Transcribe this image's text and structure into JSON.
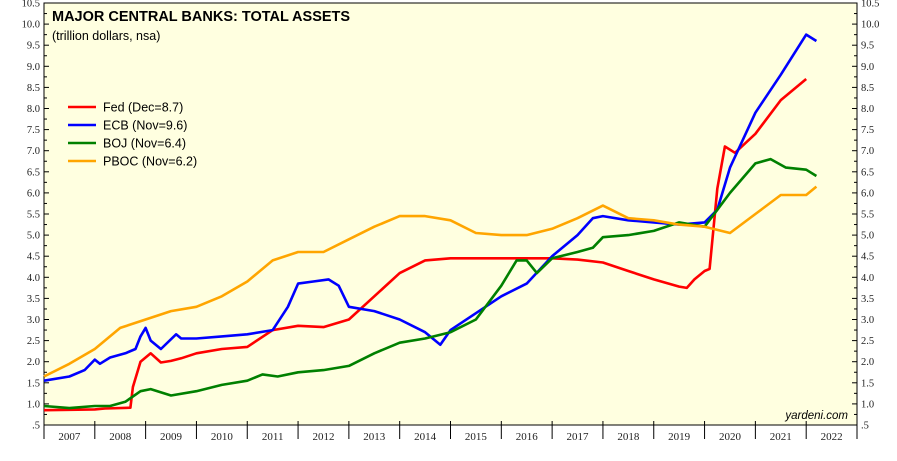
{
  "chart_data": {
    "type": "line",
    "title": "MAJOR CENTRAL BANKS: TOTAL ASSETS",
    "subtitle": "(trillion dollars, nsa)",
    "credit": "yardeni.com",
    "ylim": [
      0.5,
      10.5
    ],
    "y_ticks": [
      ".5",
      "1.0",
      "1.5",
      "2.0",
      "2.5",
      "3.0",
      "3.5",
      "4.0",
      "4.5",
      "5.0",
      "5.5",
      "6.0",
      "6.5",
      "7.0",
      "7.5",
      "8.0",
      "8.5",
      "9.0",
      "9.5",
      "10.0",
      "10.5"
    ],
    "xlim": [
      2007,
      2023
    ],
    "x_labels": [
      "2007",
      "2008",
      "2009",
      "2010",
      "2011",
      "2012",
      "2013",
      "2014",
      "2015",
      "2016",
      "2017",
      "2018",
      "2019",
      "2020",
      "2021",
      "2022"
    ],
    "background_color": "#ffffe0",
    "grid": false,
    "legend_position": "upper-left",
    "series": [
      {
        "name": "Fed (Dec=8.7)",
        "color": "#ff0000",
        "points": [
          [
            2007.0,
            0.85
          ],
          [
            2007.5,
            0.86
          ],
          [
            2008.0,
            0.87
          ],
          [
            2008.2,
            0.89
          ],
          [
            2008.7,
            0.91
          ],
          [
            2008.75,
            1.4
          ],
          [
            2008.9,
            2.0
          ],
          [
            2009.1,
            2.2
          ],
          [
            2009.3,
            1.98
          ],
          [
            2009.5,
            2.02
          ],
          [
            2009.7,
            2.08
          ],
          [
            2010.0,
            2.2
          ],
          [
            2010.5,
            2.3
          ],
          [
            2011.0,
            2.35
          ],
          [
            2011.5,
            2.75
          ],
          [
            2012.0,
            2.85
          ],
          [
            2012.5,
            2.82
          ],
          [
            2013.0,
            3.0
          ],
          [
            2013.5,
            3.55
          ],
          [
            2014.0,
            4.1
          ],
          [
            2014.5,
            4.4
          ],
          [
            2015.0,
            4.45
          ],
          [
            2015.5,
            4.45
          ],
          [
            2016.0,
            4.45
          ],
          [
            2016.5,
            4.45
          ],
          [
            2017.0,
            4.45
          ],
          [
            2017.5,
            4.42
          ],
          [
            2018.0,
            4.35
          ],
          [
            2018.5,
            4.15
          ],
          [
            2019.0,
            3.95
          ],
          [
            2019.5,
            3.78
          ],
          [
            2019.65,
            3.75
          ],
          [
            2019.8,
            3.95
          ],
          [
            2020.0,
            4.15
          ],
          [
            2020.1,
            4.2
          ],
          [
            2020.25,
            6.1
          ],
          [
            2020.4,
            7.1
          ],
          [
            2020.6,
            6.95
          ],
          [
            2021.0,
            7.4
          ],
          [
            2021.5,
            8.2
          ],
          [
            2022.0,
            8.7
          ]
        ]
      },
      {
        "name": "ECB (Nov=9.6)",
        "color": "#0000ff",
        "points": [
          [
            2007.0,
            1.55
          ],
          [
            2007.5,
            1.65
          ],
          [
            2007.8,
            1.8
          ],
          [
            2008.0,
            2.05
          ],
          [
            2008.1,
            1.95
          ],
          [
            2008.3,
            2.1
          ],
          [
            2008.6,
            2.2
          ],
          [
            2008.8,
            2.3
          ],
          [
            2008.9,
            2.6
          ],
          [
            2009.0,
            2.8
          ],
          [
            2009.1,
            2.5
          ],
          [
            2009.3,
            2.3
          ],
          [
            2009.6,
            2.65
          ],
          [
            2009.7,
            2.55
          ],
          [
            2010.0,
            2.55
          ],
          [
            2010.5,
            2.6
          ],
          [
            2011.0,
            2.65
          ],
          [
            2011.5,
            2.75
          ],
          [
            2011.8,
            3.3
          ],
          [
            2012.0,
            3.85
          ],
          [
            2012.3,
            3.9
          ],
          [
            2012.6,
            3.95
          ],
          [
            2012.8,
            3.8
          ],
          [
            2013.0,
            3.3
          ],
          [
            2013.5,
            3.2
          ],
          [
            2014.0,
            3.0
          ],
          [
            2014.5,
            2.7
          ],
          [
            2014.8,
            2.4
          ],
          [
            2015.0,
            2.75
          ],
          [
            2015.5,
            3.15
          ],
          [
            2016.0,
            3.55
          ],
          [
            2016.5,
            3.85
          ],
          [
            2017.0,
            4.5
          ],
          [
            2017.5,
            5.0
          ],
          [
            2017.8,
            5.4
          ],
          [
            2018.0,
            5.45
          ],
          [
            2018.5,
            5.35
          ],
          [
            2019.0,
            5.3
          ],
          [
            2019.5,
            5.25
          ],
          [
            2020.0,
            5.3
          ],
          [
            2020.25,
            5.6
          ],
          [
            2020.5,
            6.6
          ],
          [
            2021.0,
            7.9
          ],
          [
            2021.5,
            8.8
          ],
          [
            2022.0,
            9.75
          ],
          [
            2022.2,
            9.6
          ]
        ]
      },
      {
        "name": "BOJ (Nov=6.4)",
        "color": "#008000",
        "points": [
          [
            2007.0,
            0.95
          ],
          [
            2007.5,
            0.9
          ],
          [
            2008.0,
            0.95
          ],
          [
            2008.3,
            0.95
          ],
          [
            2008.6,
            1.05
          ],
          [
            2008.9,
            1.3
          ],
          [
            2009.1,
            1.35
          ],
          [
            2009.5,
            1.2
          ],
          [
            2010.0,
            1.3
          ],
          [
            2010.5,
            1.45
          ],
          [
            2011.0,
            1.55
          ],
          [
            2011.3,
            1.7
          ],
          [
            2011.6,
            1.65
          ],
          [
            2012.0,
            1.75
          ],
          [
            2012.5,
            1.8
          ],
          [
            2013.0,
            1.9
          ],
          [
            2013.5,
            2.2
          ],
          [
            2014.0,
            2.45
          ],
          [
            2014.5,
            2.55
          ],
          [
            2015.0,
            2.7
          ],
          [
            2015.5,
            3.0
          ],
          [
            2016.0,
            3.8
          ],
          [
            2016.3,
            4.4
          ],
          [
            2016.5,
            4.4
          ],
          [
            2016.7,
            4.1
          ],
          [
            2017.0,
            4.45
          ],
          [
            2017.5,
            4.6
          ],
          [
            2017.8,
            4.7
          ],
          [
            2018.0,
            4.95
          ],
          [
            2018.5,
            5.0
          ],
          [
            2019.0,
            5.1
          ],
          [
            2019.5,
            5.3
          ],
          [
            2020.0,
            5.2
          ],
          [
            2020.25,
            5.6
          ],
          [
            2020.5,
            6.0
          ],
          [
            2021.0,
            6.7
          ],
          [
            2021.3,
            6.8
          ],
          [
            2021.6,
            6.6
          ],
          [
            2022.0,
            6.55
          ],
          [
            2022.2,
            6.4
          ]
        ]
      },
      {
        "name": "PBOC (Nov=6.2)",
        "color": "#ffa500",
        "points": [
          [
            2007.0,
            1.65
          ],
          [
            2007.5,
            1.95
          ],
          [
            2008.0,
            2.3
          ],
          [
            2008.5,
            2.8
          ],
          [
            2009.0,
            3.0
          ],
          [
            2009.5,
            3.2
          ],
          [
            2010.0,
            3.3
          ],
          [
            2010.5,
            3.55
          ],
          [
            2011.0,
            3.9
          ],
          [
            2011.5,
            4.4
          ],
          [
            2012.0,
            4.6
          ],
          [
            2012.5,
            4.6
          ],
          [
            2013.0,
            4.9
          ],
          [
            2013.5,
            5.2
          ],
          [
            2014.0,
            5.45
          ],
          [
            2014.5,
            5.45
          ],
          [
            2015.0,
            5.35
          ],
          [
            2015.5,
            5.05
          ],
          [
            2016.0,
            5.0
          ],
          [
            2016.5,
            5.0
          ],
          [
            2017.0,
            5.15
          ],
          [
            2017.5,
            5.4
          ],
          [
            2018.0,
            5.7
          ],
          [
            2018.5,
            5.4
          ],
          [
            2019.0,
            5.35
          ],
          [
            2019.5,
            5.25
          ],
          [
            2020.0,
            5.2
          ],
          [
            2020.5,
            5.05
          ],
          [
            2021.0,
            5.5
          ],
          [
            2021.5,
            5.95
          ],
          [
            2022.0,
            5.95
          ],
          [
            2022.2,
            6.15
          ]
        ]
      }
    ]
  }
}
